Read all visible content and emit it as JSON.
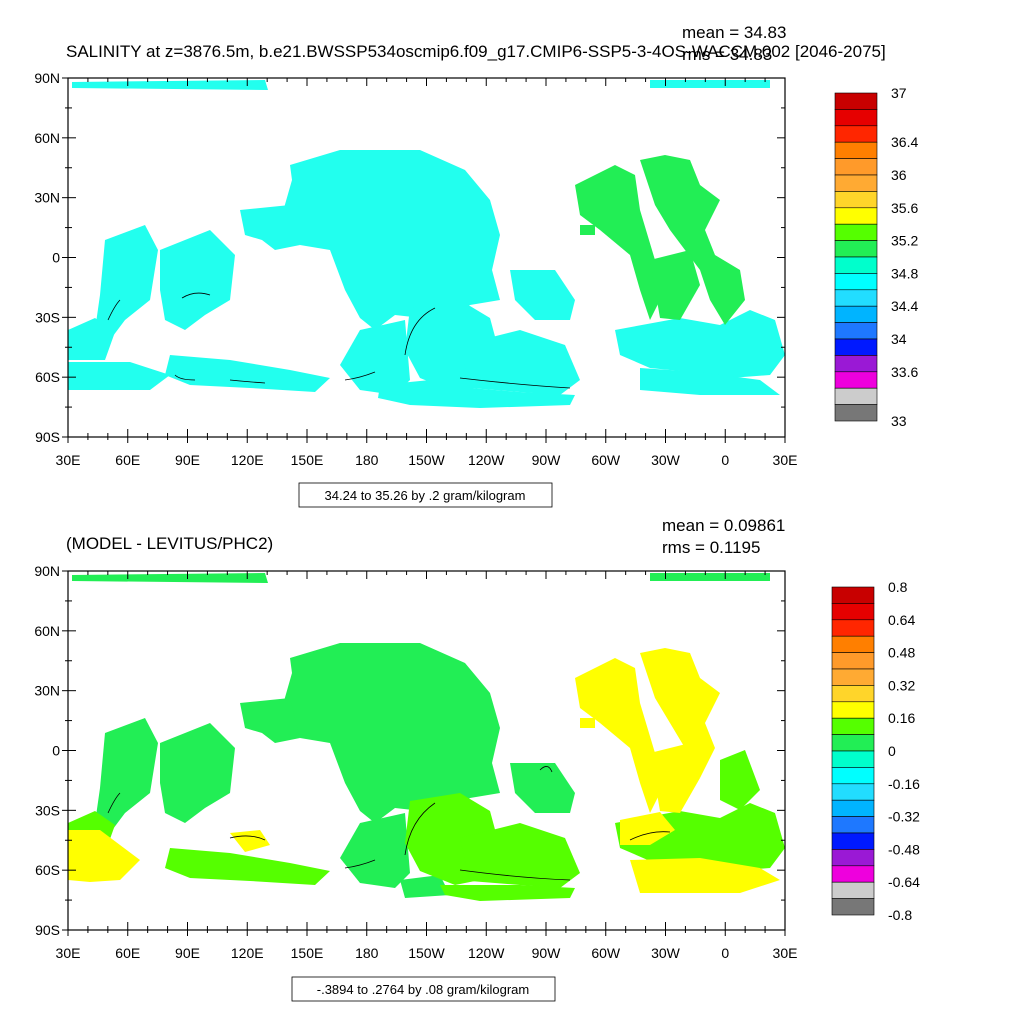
{
  "panels": [
    {
      "title": "SALINITY at z=3876.5m, b.e21.BWSSP534oscmip6.f09_g17.CMIP6-SSP5-3-4OS-WACCM.002 [2046-2075]",
      "mean_label": "mean = 34.83",
      "rms_label": "rms = 34.83",
      "contour_info": "34.24 to 35.26 by .2 gram/kilogram",
      "lat_labels": [
        "90N",
        "60N",
        "30N",
        "0",
        "30S",
        "60S",
        "90S"
      ],
      "lon_labels": [
        "30E",
        "60E",
        "90E",
        "120E",
        "150E",
        "180",
        "150W",
        "120W",
        "90W",
        "60W",
        "30W",
        "0",
        "30E"
      ],
      "colorbar": {
        "colors": [
          "#c80000",
          "#e60000",
          "#ff2600",
          "#ff7f00",
          "#ff9a2a",
          "#ffaa33",
          "#ffd52a",
          "#ffff00",
          "#55ff00",
          "#22ee55",
          "#00ffcc",
          "#00ffff",
          "#22ddff",
          "#00b4ff",
          "#1e78ff",
          "#0019ff",
          "#9a19d5",
          "#ee00dd",
          "#cccccc",
          "#777777"
        ],
        "labels": [
          "37",
          "36.4",
          "36",
          "35.6",
          "35.2",
          "34.8",
          "34.4",
          "34",
          "33.6",
          "33"
        ]
      },
      "map_colors": {
        "primary": "#22ffee",
        "secondary": "#22ee55",
        "tertiary": "#55ff00"
      }
    },
    {
      "title": "(MODEL - LEVITUS/PHC2)",
      "mean_label": "mean = 0.09861",
      "rms_label": "rms = 0.1195",
      "contour_info": "-.3894 to .2764 by .08 gram/kilogram",
      "lat_labels": [
        "90N",
        "60N",
        "30N",
        "0",
        "30S",
        "60S",
        "90S"
      ],
      "lon_labels": [
        "30E",
        "60E",
        "90E",
        "120E",
        "150E",
        "180",
        "150W",
        "120W",
        "90W",
        "60W",
        "30W",
        "0",
        "30E"
      ],
      "colorbar": {
        "colors": [
          "#c80000",
          "#e60000",
          "#ff2600",
          "#ff7f00",
          "#ff9a2a",
          "#ffaa33",
          "#ffd52a",
          "#ffff00",
          "#55ff00",
          "#22ee55",
          "#00ffcc",
          "#00ffff",
          "#22ddff",
          "#00b4ff",
          "#1e78ff",
          "#0019ff",
          "#9a19d5",
          "#ee00dd",
          "#cccccc",
          "#777777"
        ],
        "labels": [
          "0.8",
          "0.64",
          "0.48",
          "0.32",
          "0.16",
          "0",
          "-0.16",
          "-0.32",
          "-0.48",
          "-0.64",
          "-0.8"
        ]
      },
      "map_colors": {
        "primary": "#22ee55",
        "secondary": "#ffff00",
        "tertiary": "#55ff00"
      }
    }
  ]
}
